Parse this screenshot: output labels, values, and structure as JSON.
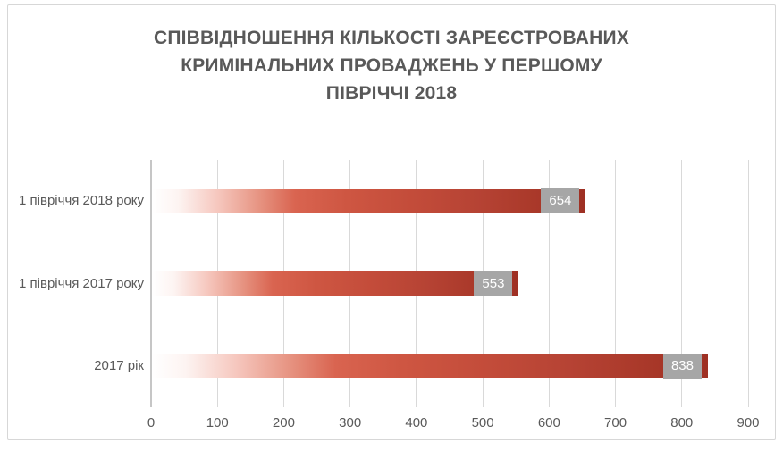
{
  "chart_data": {
    "type": "bar",
    "orientation": "horizontal",
    "title": "СПІВВІДНОШЕННЯ КІЛЬКОСТІ ЗАРЕЄСТРОВАНИХ\nКРИМІНАЛЬНИХ ПРОВАДЖЕНЬ У ПЕРШОМУ\nПІВРІЧЧІ 2018",
    "categories": [
      "1 півріччя 2018 року",
      "1 півріччя 2017 року",
      "2017 рік"
    ],
    "values": [
      654,
      553,
      838
    ],
    "data_labels": [
      "654",
      "553",
      "838"
    ],
    "xlabel": "",
    "ylabel": "",
    "xlim": [
      0,
      900
    ],
    "x_ticks": [
      0,
      100,
      200,
      300,
      400,
      500,
      600,
      700,
      800,
      900
    ],
    "grid": true,
    "legend": "none",
    "style": {
      "title_color": "#595959",
      "axis_text_color": "#595959",
      "gridline_color": "#d9d9d9",
      "zero_axis_color": "#c6c6c6",
      "frame_border_color": "#d7d7d7",
      "value_label_bg": "#a6a6a6",
      "value_label_text": "#ffffff",
      "bar_gradient_stops": [
        "#ffffff 0%",
        "#fdf4f2 6%",
        "#f6c8bf 15%",
        "#e69280 25%",
        "#d96450 33%",
        "#ce5642 45%",
        "#c34c3a 60%",
        "#b64334 75%",
        "#aa392a 88%",
        "#9e3023 100%"
      ]
    }
  }
}
